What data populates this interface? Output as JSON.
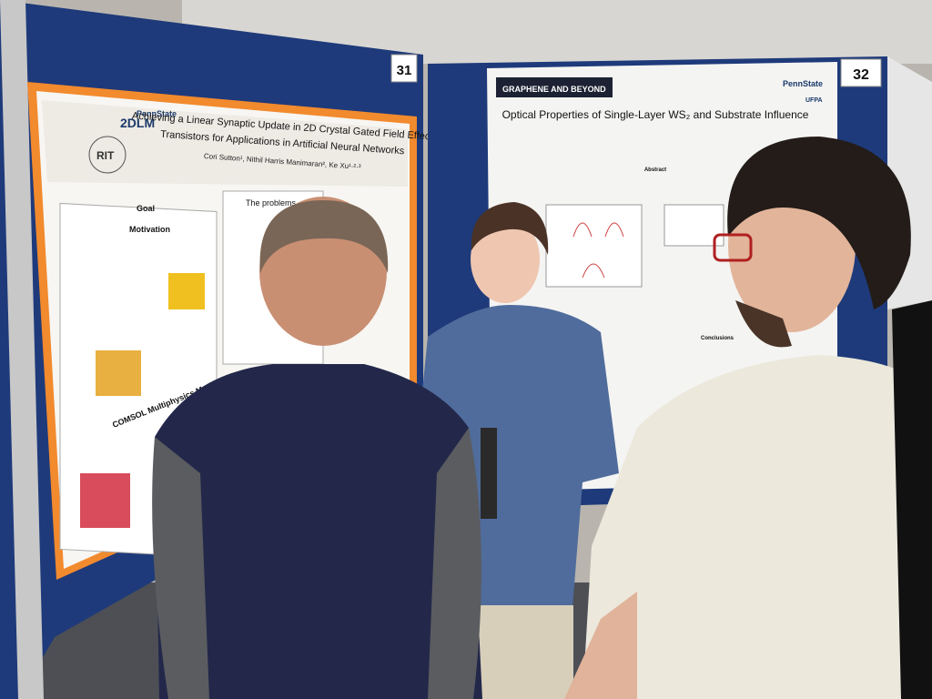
{
  "signs": {
    "left_number": "31",
    "right_number": "32"
  },
  "left_poster": {
    "logos": [
      "PennState",
      "2DLM",
      "RIT"
    ],
    "title_lines": [
      "Achieving a Linear Synaptic Update in 2D Crystal Gated Field Effect",
      "Transistors for Applications in Artificial Neural Networks"
    ],
    "authors": "Cori Sutton¹, Nithil Harris Manimaran², Ke Xu¹·²·³",
    "sections": [
      "Goal",
      "Motivation",
      "The problems",
      "COMSOL Multiphysics Model"
    ]
  },
  "right_poster": {
    "banner": "GRAPHENE AND BEYOND",
    "logos": [
      "PennState",
      "UFPA"
    ],
    "title": "Optical Properties of Single-Layer WS₂ and Substrate Influence",
    "sections": [
      "Abstract",
      "Conclusions"
    ]
  }
}
